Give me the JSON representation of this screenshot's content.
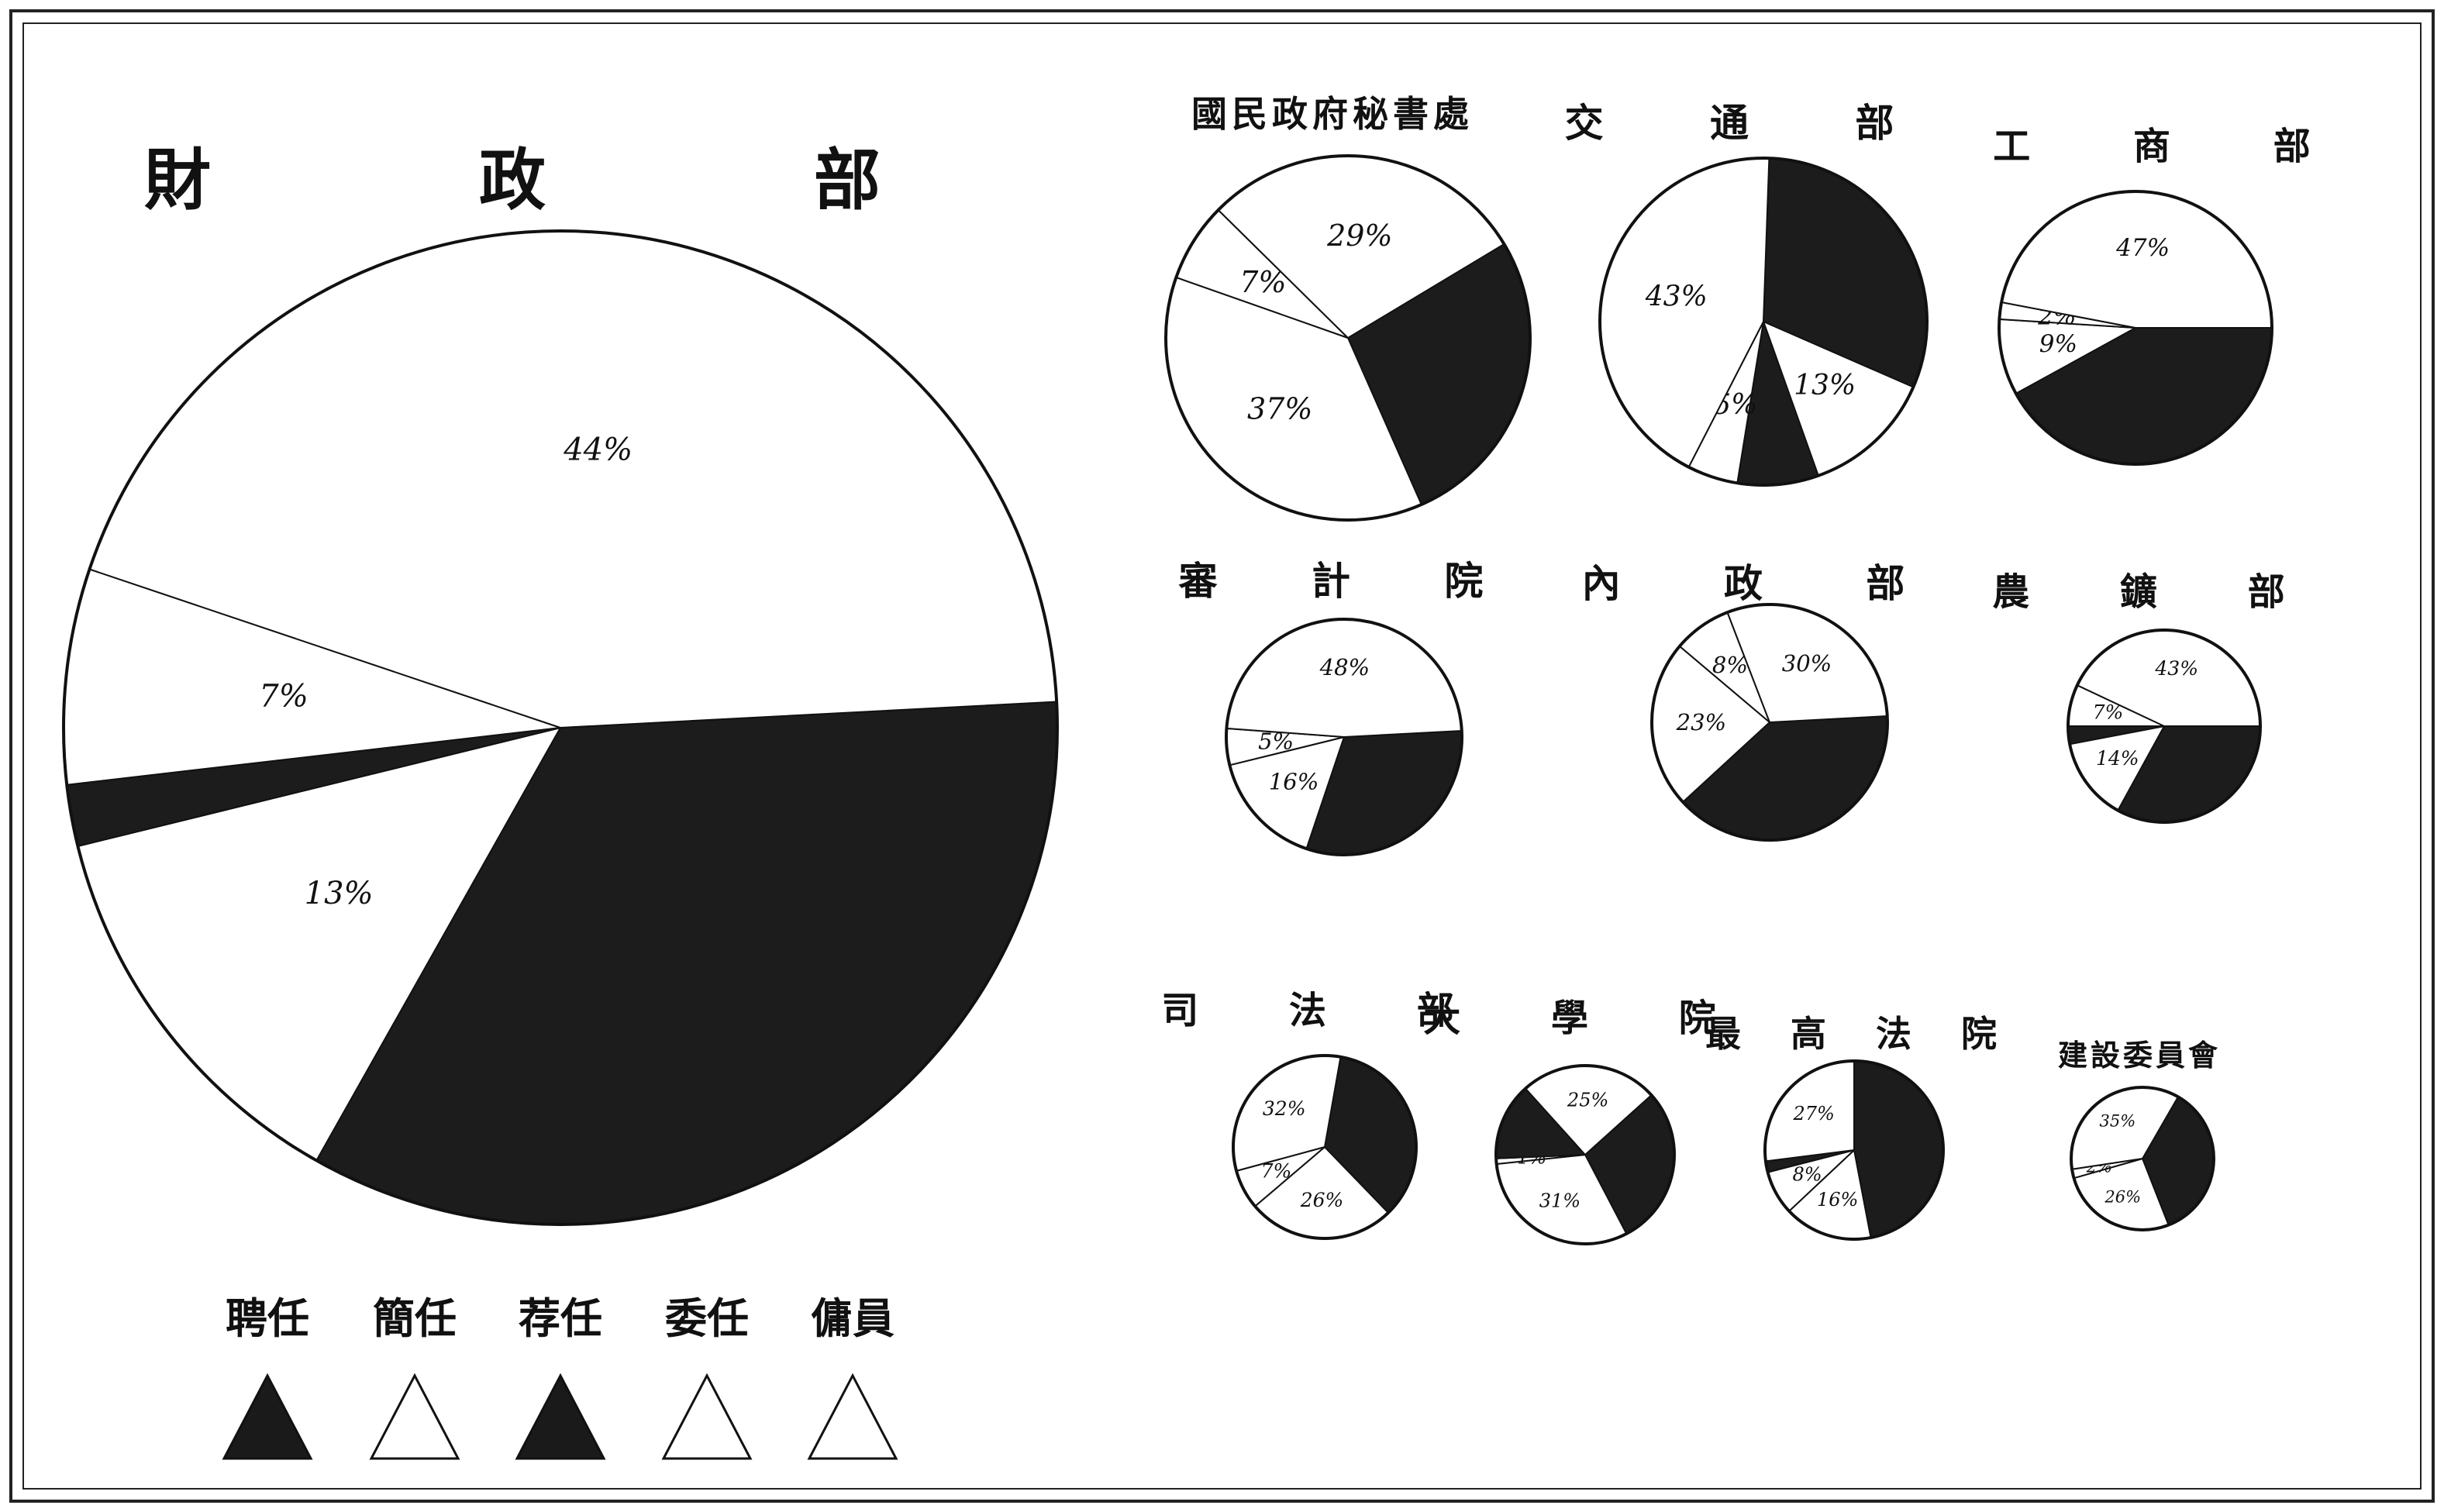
{
  "chart_data": {
    "type": "pie",
    "legend": {
      "placement": "bottom-left",
      "entries": [
        {
          "label": "聘任",
          "color": "#1a1a1a"
        },
        {
          "label": "簡任",
          "color": "#ffffff"
        },
        {
          "label": "荐任",
          "color": "#1a1a1a"
        },
        {
          "label": "委任",
          "color": "#ffffff"
        },
        {
          "label": "傭員",
          "color": "#ffffff"
        }
      ]
    },
    "charts": [
      {
        "key": "finance",
        "title": "財 政 部",
        "slices": [
          {
            "label": "",
            "value": 34,
            "color": "#1c1c1c"
          },
          {
            "label": "13%",
            "value": 13,
            "color": "#ffffff"
          },
          {
            "label": "",
            "value": 2,
            "color": "#1c1c1c"
          },
          {
            "label": "7%",
            "value": 7,
            "color": "#ffffff"
          },
          {
            "label": "44%",
            "value": 44,
            "color": "#ffffff"
          }
        ]
      },
      {
        "key": "secretariat",
        "title": "國民政府秘書處",
        "slices": [
          {
            "label": "",
            "value": 27,
            "color": "#1c1c1c"
          },
          {
            "label": "37%",
            "value": 37,
            "color": "#ffffff"
          },
          {
            "label": "7%",
            "value": 7,
            "color": "#ffffff"
          },
          {
            "label": "29%",
            "value": 29,
            "color": "#ffffff"
          }
        ]
      },
      {
        "key": "communications",
        "title": "交 通 部",
        "slices": [
          {
            "label": "",
            "value": 31,
            "color": "#1c1c1c"
          },
          {
            "label": "13%",
            "value": 13,
            "color": "#ffffff"
          },
          {
            "label": "",
            "value": 8,
            "color": "#1c1c1c"
          },
          {
            "label": "5%",
            "value": 5,
            "color": "#ffffff"
          },
          {
            "label": "43%",
            "value": 43,
            "color": "#ffffff"
          }
        ]
      },
      {
        "key": "industry_commerce",
        "title": "工 商 部",
        "slices": [
          {
            "label": "",
            "value": 42,
            "color": "#1c1c1c"
          },
          {
            "label": "9%",
            "value": 9,
            "color": "#ffffff"
          },
          {
            "label": "2%",
            "value": 2,
            "color": "#ffffff"
          },
          {
            "label": "47%",
            "value": 47,
            "color": "#ffffff"
          }
        ]
      },
      {
        "key": "audit",
        "title": "審 計 院",
        "slices": [
          {
            "label": "",
            "value": 31,
            "color": "#1c1c1c"
          },
          {
            "label": "16%",
            "value": 16,
            "color": "#ffffff"
          },
          {
            "label": "5%",
            "value": 5,
            "color": "#ffffff"
          },
          {
            "label": "48%",
            "value": 48,
            "color": "#ffffff"
          }
        ]
      },
      {
        "key": "interior",
        "title": "內 政 部",
        "slices": [
          {
            "label": "",
            "value": 39,
            "color": "#1c1c1c"
          },
          {
            "label": "23%",
            "value": 23,
            "color": "#ffffff"
          },
          {
            "label": "8%",
            "value": 8,
            "color": "#ffffff"
          },
          {
            "label": "30%",
            "value": 30,
            "color": "#ffffff"
          }
        ]
      },
      {
        "key": "agriculture_mining",
        "title": "農 鑛 部",
        "slices": [
          {
            "label": "",
            "value": 33,
            "color": "#1c1c1c"
          },
          {
            "label": "14%",
            "value": 14,
            "color": "#ffffff"
          },
          {
            "label": "",
            "value": 3,
            "color": "#1c1c1c"
          },
          {
            "label": "7%",
            "value": 7,
            "color": "#ffffff"
          },
          {
            "label": "43%",
            "value": 43,
            "color": "#ffffff"
          }
        ]
      },
      {
        "key": "judicial",
        "title": "司 法 部",
        "slices": [
          {
            "label": "",
            "value": 35,
            "color": "#1c1c1c"
          },
          {
            "label": "26%",
            "value": 26,
            "color": "#ffffff"
          },
          {
            "label": "7%",
            "value": 7,
            "color": "#ffffff"
          },
          {
            "label": "32%",
            "value": 32,
            "color": "#ffffff"
          }
        ]
      },
      {
        "key": "university",
        "title": "大 學 院",
        "slices": [
          {
            "label": "",
            "value": 29,
            "color": "#1c1c1c"
          },
          {
            "label": "31%",
            "value": 31,
            "color": "#ffffff"
          },
          {
            "label": "1%",
            "value": 1,
            "color": "#ffffff"
          },
          {
            "label": "",
            "value": 14,
            "color": "#1c1c1c"
          },
          {
            "label": "25%",
            "value": 25,
            "color": "#ffffff"
          }
        ]
      },
      {
        "key": "supreme_court",
        "title": "最 高 法 院",
        "slices": [
          {
            "label": "",
            "value": 47,
            "color": "#1c1c1c"
          },
          {
            "label": "16%",
            "value": 16,
            "color": "#ffffff"
          },
          {
            "label": "8%",
            "value": 8,
            "color": "#ffffff"
          },
          {
            "label": "",
            "value": 2,
            "color": "#1c1c1c"
          },
          {
            "label": "27%",
            "value": 27,
            "color": "#ffffff"
          }
        ]
      },
      {
        "key": "reconstruction",
        "title": "建設委員會",
        "slices": [
          {
            "label": "",
            "value": 35,
            "color": "#1c1c1c"
          },
          {
            "label": "26%",
            "value": 26,
            "color": "#ffffff"
          },
          {
            "label": "2%",
            "value": 2,
            "color": "#ffffff"
          },
          {
            "label": "35%",
            "value": 35,
            "color": "#ffffff"
          }
        ]
      }
    ]
  }
}
